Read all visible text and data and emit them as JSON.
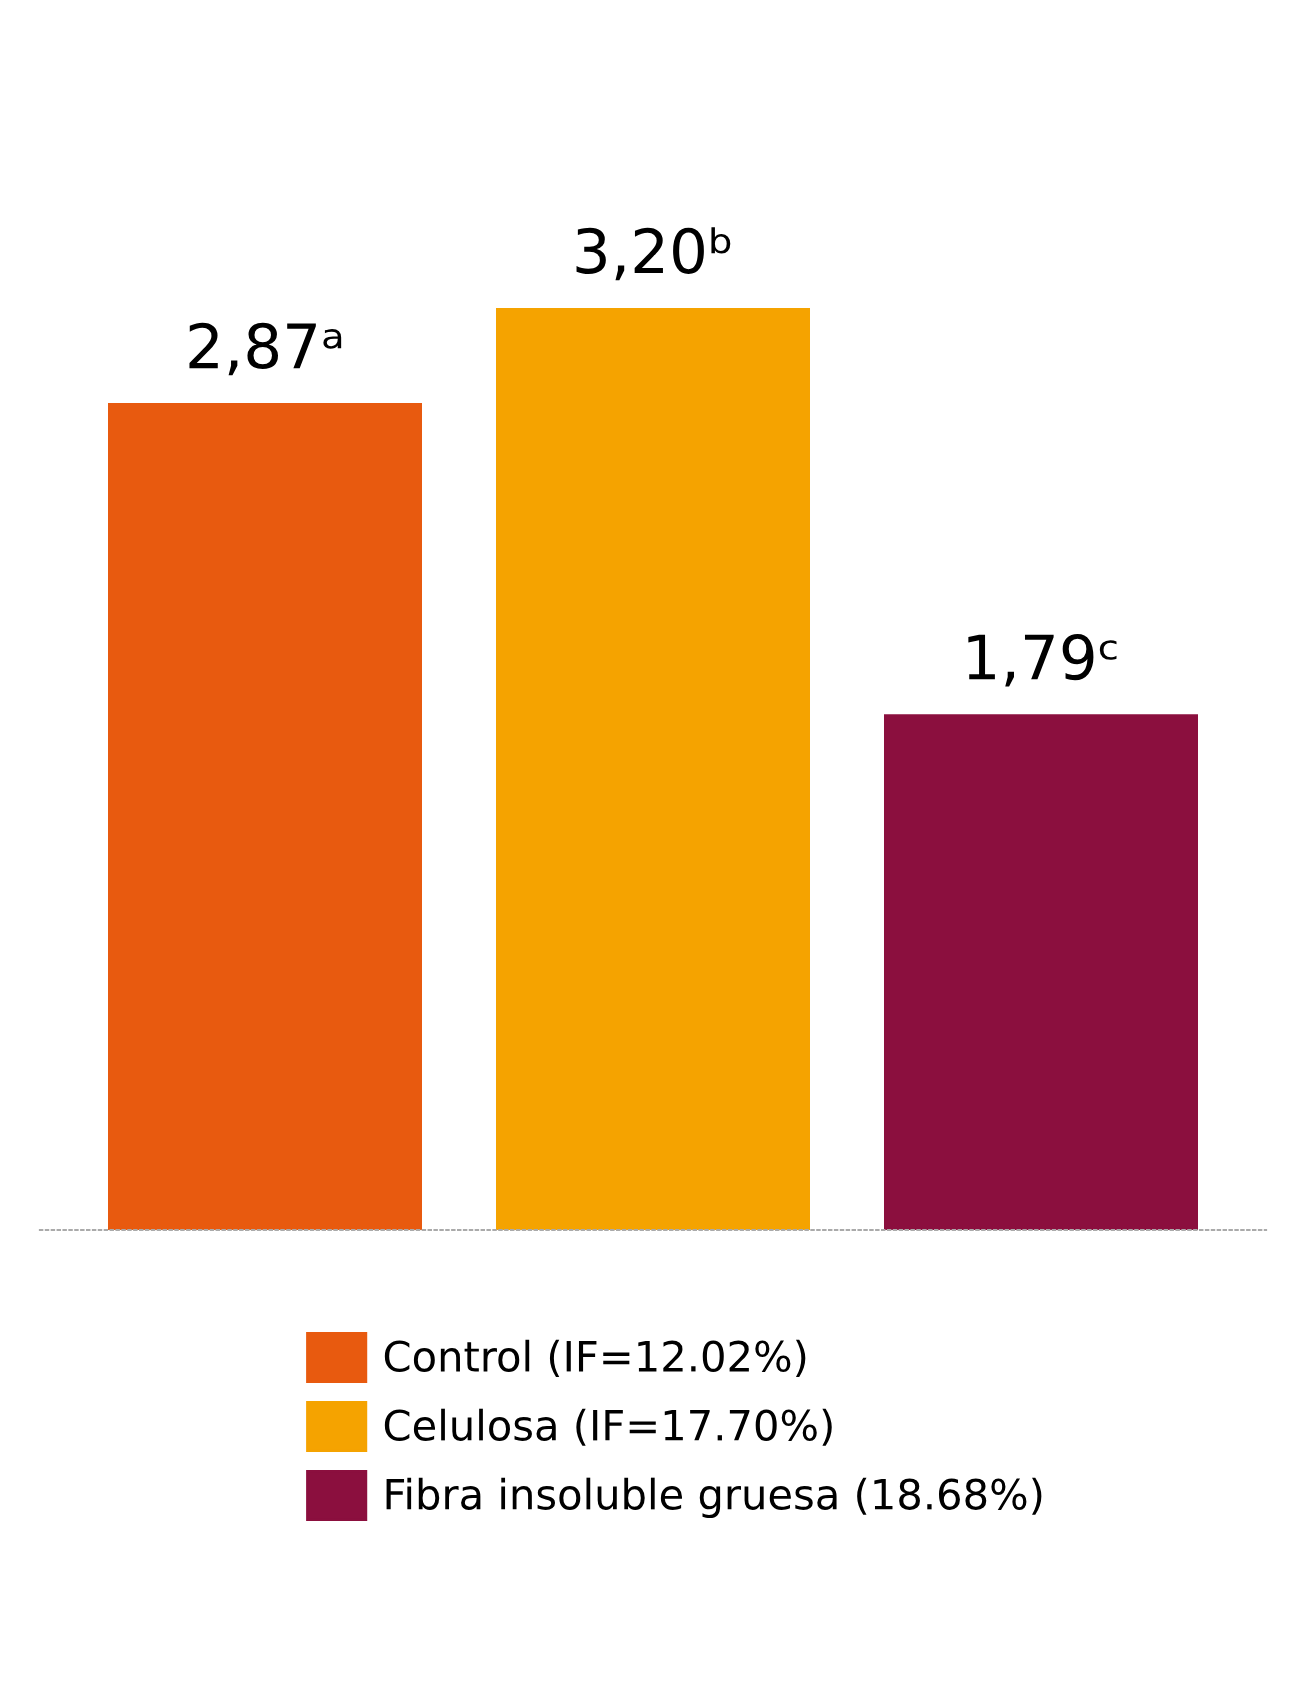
{
  "chart_data": {
    "type": "bar",
    "categories": [
      null
    ],
    "legend": "bottom",
    "tick_labels": false,
    "series": [
      {
        "name": "Control (IF=12.02%)",
        "color": "#e85a0f",
        "values": [
          2.87
        ],
        "value_labels": [
          "2,87ᵃ"
        ]
      },
      {
        "name": "Celulosa (IF=17.70%)",
        "color": "#f5a300",
        "values": [
          3.2
        ],
        "value_labels": [
          "3,20ᵇ"
        ]
      },
      {
        "name": "Fibra insoluble gruesa (18.68%)",
        "color": "#8b0f3e",
        "values": [
          1.79
        ],
        "value_labels": [
          "1,79ᶜ"
        ]
      }
    ]
  }
}
